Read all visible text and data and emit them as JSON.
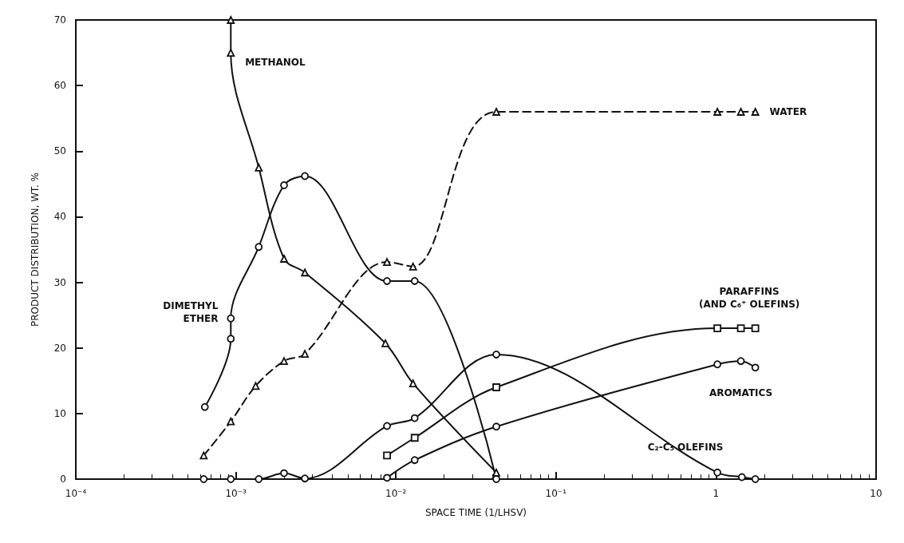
{
  "chart_data": {
    "type": "line",
    "xlabel": "SPACE TIME (1/LHSV)",
    "ylabel": "PRODUCT DISTRIBUTION, WT. %",
    "log": "x",
    "xlim": [
      0.0001,
      10
    ],
    "xticks": [
      {
        "value": 0.0001,
        "label": "10⁻⁴"
      },
      {
        "value": 0.001,
        "label": "10⁻³"
      },
      {
        "value": 0.01,
        "label": "10⁻²"
      },
      {
        "value": 0.1,
        "label": "10⁻¹"
      },
      1,
      10
    ],
    "ylim": [
      0,
      70
    ],
    "yticks": [
      0,
      10,
      20,
      30,
      40,
      50,
      60,
      70
    ],
    "grid": false,
    "legend": false,
    "series": [
      {
        "name": "METHANOL",
        "color": "#111111",
        "marker": "triangle",
        "line_style": "solid",
        "x": [
          0.00093,
          0.00093,
          0.00139,
          0.002,
          0.0027,
          0.0086,
          0.0128,
          0.0424
        ],
        "values": [
          70,
          65,
          47.5,
          33.6,
          31.5,
          20.7,
          14.6,
          1
        ]
      },
      {
        "name": "DIMETHYL\nETHER",
        "color": "#111111",
        "marker": "circle",
        "line_style": "solid",
        "x": [
          0.00064,
          0.00093,
          0.00093,
          0.00139,
          0.002,
          0.0027,
          0.0088,
          0.0131,
          0.0424
        ],
        "values": [
          11,
          21.4,
          24.5,
          35.4,
          44.8,
          46.2,
          30.2,
          30.2,
          0
        ]
      },
      {
        "name": "WATER",
        "color": "#111111",
        "marker": "triangle",
        "line_style": "dashed",
        "x": [
          0.00063,
          0.00093,
          0.00133,
          0.002,
          0.0027,
          0.0088,
          0.0128,
          0.0424,
          1.02,
          1.43,
          1.76
        ],
        "values": [
          3.6,
          8.8,
          14.2,
          18,
          19.1,
          33.1,
          32.4,
          56,
          56,
          56,
          56
        ]
      },
      {
        "name": "C₂-C₅ OLEFINS",
        "color": "#111111",
        "marker": "circle",
        "line_style": "solid",
        "x": [
          0.00063,
          0.00093,
          0.00139,
          0.002,
          0.0027,
          0.0088,
          0.0131,
          0.0424,
          1.02,
          1.45,
          1.76
        ],
        "values": [
          0,
          0,
          0,
          0.9,
          0.1,
          8.1,
          9.3,
          19,
          1,
          0.3,
          0
        ]
      },
      {
        "name": "PARAFFINS\n(AND C₆⁺ OLEFINS)",
        "color": "#111111",
        "marker": "square",
        "line_style": "solid",
        "x": [
          0.0088,
          0.0131,
          0.0424,
          1.02,
          1.43,
          1.76
        ],
        "values": [
          3.6,
          6.3,
          14,
          23,
          23,
          23
        ]
      },
      {
        "name": "AROMATICS",
        "color": "#111111",
        "marker": "circle",
        "line_style": "solid",
        "x": [
          0.0088,
          0.0131,
          0.0424,
          1.02,
          1.43,
          1.76
        ],
        "values": [
          0.2,
          2.9,
          8,
          17.5,
          18,
          17
        ]
      }
    ]
  }
}
